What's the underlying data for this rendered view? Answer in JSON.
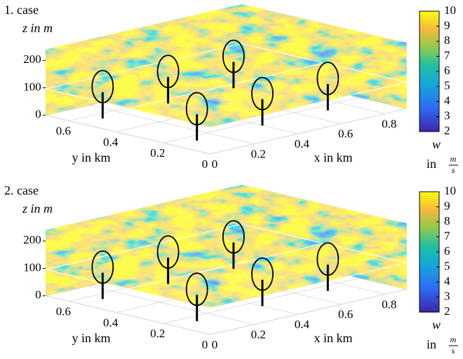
{
  "chart_data": [
    {
      "type": "surface",
      "title": "1. case",
      "zlabel": "z in m",
      "ylabel": "y in km",
      "xlabel": "x in km",
      "xlim": [
        0,
        0.9
      ],
      "ylim": [
        0,
        0.7
      ],
      "zlim": [
        0,
        240
      ],
      "xticks": [
        0,
        0.2,
        0.4,
        0.6,
        0.8
      ],
      "yticks": [
        0,
        0.2,
        0.4,
        0.6
      ],
      "zticks": [
        0,
        100,
        200
      ],
      "colorbar": {
        "label": "w",
        "unit_prefix": "in",
        "unit_numerator": "m",
        "unit_denominator": "s",
        "lim": [
          2,
          10
        ],
        "ticks": [
          2,
          3,
          4,
          5,
          6,
          7,
          8,
          9,
          10
        ]
      }
    },
    {
      "type": "surface",
      "title": "2. case",
      "zlabel": "z in m",
      "ylabel": "y in km",
      "xlabel": "x in km",
      "xlim": [
        0,
        0.9
      ],
      "ylim": [
        0,
        0.7
      ],
      "zlim": [
        0,
        240
      ],
      "xticks": [
        0,
        0.2,
        0.4,
        0.6,
        0.8
      ],
      "yticks": [
        0,
        0.2,
        0.4,
        0.6
      ],
      "zticks": [
        0,
        100,
        200
      ],
      "colorbar": {
        "label": "w",
        "unit_prefix": "in",
        "unit_numerator": "m",
        "unit_denominator": "s",
        "lim": [
          2,
          10
        ],
        "ticks": [
          2,
          3,
          4,
          5,
          6,
          7,
          8,
          9,
          10
        ]
      }
    }
  ]
}
